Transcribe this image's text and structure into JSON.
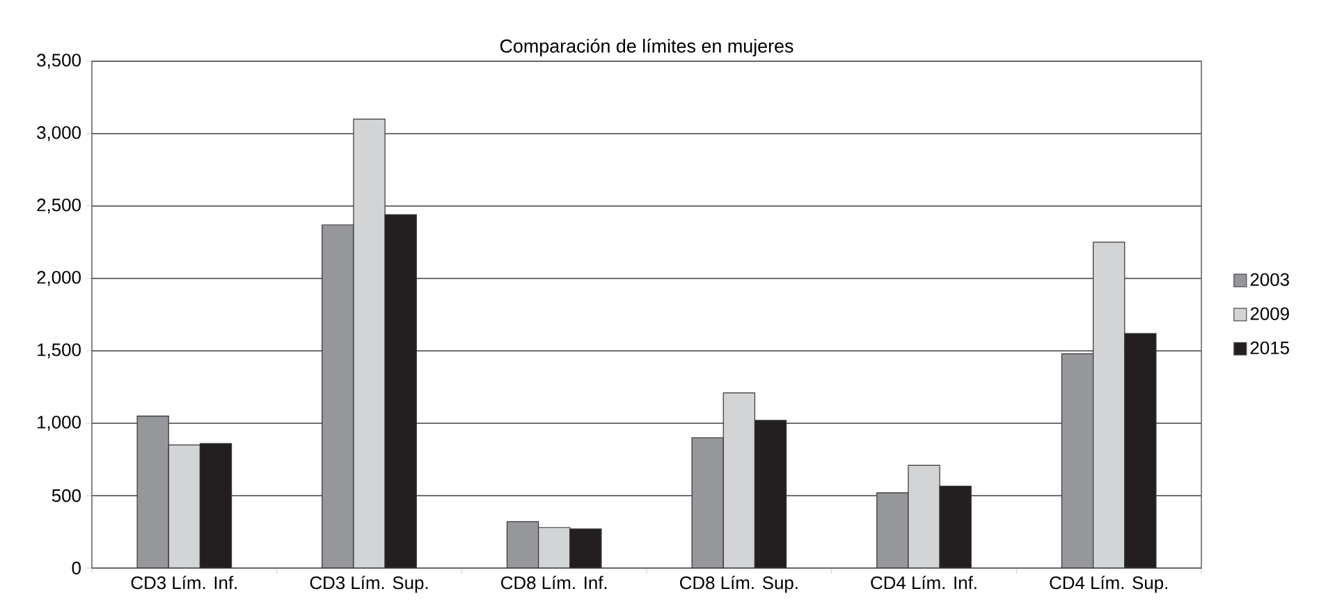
{
  "chart_data": {
    "type": "bar",
    "title": "Comparación de límites en mujeres",
    "categories": [
      "CD3 Lím. Inf.",
      "CD3 Lím. Sup.",
      "CD8 Lím. Inf.",
      "CD8 Lím. Sup.",
      "CD4 Lím. Inf.",
      "CD4 Lím. Sup."
    ],
    "series": [
      {
        "name": "2003",
        "color": "#96979b",
        "values": [
          1050,
          2370,
          320,
          900,
          520,
          1480
        ]
      },
      {
        "name": "2009",
        "color": "#d3d4d6",
        "values": [
          850,
          3100,
          280,
          1210,
          710,
          2250
        ]
      },
      {
        "name": "2015",
        "color": "#231f20",
        "values": [
          860,
          2440,
          270,
          1020,
          565,
          1620
        ]
      }
    ],
    "ylim": [
      0,
      3500
    ],
    "yticks": [
      {
        "value": 0,
        "label": "0"
      },
      {
        "value": 500,
        "label": "500"
      },
      {
        "value": 1000,
        "label": "1,000"
      },
      {
        "value": 1500,
        "label": "1,500"
      },
      {
        "value": 2000,
        "label": "2,000"
      },
      {
        "value": 2500,
        "label": "2,500"
      },
      {
        "value": 3000,
        "label": "3,000"
      },
      {
        "value": 3500,
        "label": "3,500"
      }
    ],
    "grid": "y",
    "legend": "right"
  }
}
